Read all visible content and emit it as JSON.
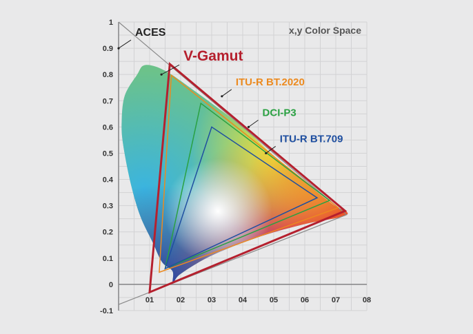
{
  "chart_data": {
    "type": "scatter",
    "title": "x,y Color Space",
    "xlabel": "",
    "ylabel": "",
    "xlim": [
      0,
      0.8
    ],
    "ylim": [
      -0.1,
      1.0
    ],
    "grid": true,
    "x_ticks": [
      {
        "value": 0.1,
        "label": "01"
      },
      {
        "value": 0.2,
        "label": "02"
      },
      {
        "value": 0.3,
        "label": "03"
      },
      {
        "value": 0.4,
        "label": "04"
      },
      {
        "value": 0.5,
        "label": "05"
      },
      {
        "value": 0.6,
        "label": "06"
      },
      {
        "value": 0.7,
        "label": "07"
      },
      {
        "value": 0.8,
        "label": "08"
      }
    ],
    "y_ticks": [
      {
        "value": 1.0,
        "label": "1"
      },
      {
        "value": 0.9,
        "label": "0.9"
      },
      {
        "value": 0.8,
        "label": "0.8"
      },
      {
        "value": 0.7,
        "label": "0.7"
      },
      {
        "value": 0.6,
        "label": "0.6"
      },
      {
        "value": 0.5,
        "label": "0.5"
      },
      {
        "value": 0.4,
        "label": "0.4"
      },
      {
        "value": 0.3,
        "label": "0.3"
      },
      {
        "value": 0.2,
        "label": "0.2"
      },
      {
        "value": 0.1,
        "label": "0.1"
      },
      {
        "value": 0.0,
        "label": "0"
      },
      {
        "value": -0.1,
        "label": "-0.1"
      }
    ],
    "spectral_locus": [
      [
        0.175,
        0.005
      ],
      [
        0.174,
        0.05
      ],
      [
        0.14,
        0.085
      ],
      [
        0.11,
        0.16
      ],
      [
        0.07,
        0.26
      ],
      [
        0.04,
        0.38
      ],
      [
        0.015,
        0.53
      ],
      [
        0.01,
        0.62
      ],
      [
        0.02,
        0.72
      ],
      [
        0.06,
        0.8
      ],
      [
        0.08,
        0.834
      ],
      [
        0.12,
        0.83
      ],
      [
        0.17,
        0.8
      ],
      [
        0.23,
        0.75
      ],
      [
        0.3,
        0.69
      ],
      [
        0.4,
        0.6
      ],
      [
        0.5,
        0.49
      ],
      [
        0.6,
        0.39
      ],
      [
        0.69,
        0.305
      ],
      [
        0.735,
        0.265
      ],
      [
        0.6,
        0.23
      ],
      [
        0.45,
        0.18
      ],
      [
        0.3,
        0.11
      ],
      [
        0.2,
        0.04
      ]
    ],
    "series": [
      {
        "name": "ACES",
        "color": "#8a8a8a",
        "kind": "line",
        "points": [
          [
            0.0,
            1.0
          ],
          [
            0.7347,
            0.2653
          ],
          [
            0.0,
            -0.077
          ]
        ]
      },
      {
        "name": "V-Gamut",
        "color": "#b5202e",
        "kind": "polygon",
        "points": [
          [
            0.73,
            0.28
          ],
          [
            0.165,
            0.84
          ],
          [
            0.1,
            -0.03
          ]
        ]
      },
      {
        "name": "ITU-R BT.2020",
        "color": "#ec8a1f",
        "kind": "polygon",
        "points": [
          [
            0.708,
            0.292
          ],
          [
            0.17,
            0.797
          ],
          [
            0.131,
            0.046
          ]
        ]
      },
      {
        "name": "DCI-P3",
        "color": "#2aa142",
        "kind": "polygon",
        "points": [
          [
            0.68,
            0.32
          ],
          [
            0.265,
            0.69
          ],
          [
            0.15,
            0.06
          ]
        ]
      },
      {
        "name": "ITU-R BT.709",
        "color": "#1f4fa0",
        "kind": "polygon",
        "points": [
          [
            0.64,
            0.33
          ],
          [
            0.3,
            0.6
          ],
          [
            0.15,
            0.06
          ]
        ]
      }
    ],
    "annotations": [
      {
        "text": "ACES",
        "color": "#222222",
        "at": [
          0.0,
          0.9
        ]
      },
      {
        "text": "V-Gamut",
        "color": "#b5202e",
        "at": [
          0.138,
          0.8
        ]
      },
      {
        "text": "ITU-R BT.2020",
        "color": "#ec8a1f",
        "at": [
          0.333,
          0.717
        ]
      },
      {
        "text": "DCI-P3",
        "color": "#2aa142",
        "at": [
          0.419,
          0.6
        ]
      },
      {
        "text": "ITU-R BT.709",
        "color": "#1f4fa0",
        "at": [
          0.475,
          0.5
        ]
      }
    ]
  }
}
